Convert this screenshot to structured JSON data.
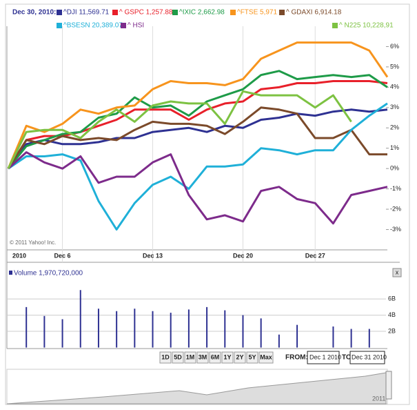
{
  "ui": {
    "header_date": "Dec 30, 2010:",
    "copyright": "© 2011 Yahoo! Inc.",
    "ranges": [
      "1D",
      "5D",
      "1M",
      "3M",
      "6M",
      "1Y",
      "2Y",
      "5Y",
      "Max"
    ],
    "from_label": "FROM:",
    "from_value": "Dec 1 2010",
    "to_label": "TO:",
    "to_value": "Dec 31 2010",
    "navigator_year": "2011"
  },
  "chart_data": [
    {
      "type": "line",
      "ylim": [
        -4,
        7
      ],
      "yticks": [
        {
          "value": 6,
          "label": "6%"
        },
        {
          "value": 5,
          "label": "5%"
        },
        {
          "value": 4,
          "label": "4%"
        },
        {
          "value": 3,
          "label": "3%"
        },
        {
          "value": 2,
          "label": "2%"
        },
        {
          "value": 1,
          "label": "1%"
        },
        {
          "value": 0,
          "label": "0%"
        },
        {
          "value": -1,
          "label": "-1%"
        },
        {
          "value": -2,
          "label": "-2%"
        },
        {
          "value": -3,
          "label": "-3%"
        }
      ],
      "categories": [
        "2010",
        null,
        null,
        "Dec 6",
        null,
        null,
        null,
        null,
        "Dec 13",
        null,
        null,
        null,
        null,
        "Dec 20",
        null,
        null,
        null,
        "Dec 27",
        null,
        null,
        null,
        null
      ],
      "series": [
        {
          "name": "^DJI 11,569.71",
          "color": "#2e3192",
          "values": [
            0,
            1.2,
            1.4,
            1.2,
            1.2,
            1.3,
            1.5,
            1.5,
            1.8,
            1.9,
            2.0,
            1.8,
            2.1,
            2.0,
            2.4,
            2.5,
            2.7,
            2.6,
            2.8,
            2.9,
            2.8,
            2.9
          ]
        },
        {
          "name": "^ GSPC 1,257.88",
          "color": "#e8202a",
          "values": [
            0,
            1.4,
            1.6,
            1.6,
            1.8,
            2.1,
            2.4,
            2.9,
            2.9,
            2.9,
            2.4,
            2.9,
            3.2,
            3.3,
            3.9,
            4.0,
            4.2,
            4.2,
            4.3,
            4.3,
            4.3,
            4.2
          ]
        },
        {
          "name": "^IXIC 2,662.98",
          "color": "#1e9b48",
          "values": [
            0,
            1.1,
            1.4,
            1.7,
            1.8,
            2.5,
            2.7,
            3.5,
            3.0,
            3.1,
            2.6,
            3.3,
            3.6,
            3.9,
            4.6,
            4.8,
            4.4,
            4.5,
            4.6,
            4.5,
            4.6,
            4.0
          ]
        },
        {
          "name": "^FTSE 5,971",
          "color": "#f7941d",
          "values": [
            0,
            2.1,
            1.8,
            2.2,
            2.9,
            2.7,
            3.0,
            3.1,
            3.9,
            4.3,
            4.2,
            4.2,
            4.1,
            4.4,
            5.4,
            5.8,
            6.2,
            6.2,
            6.2,
            6.2,
            5.8,
            4.5
          ]
        },
        {
          "name": "^ GDAXI 6,914.18",
          "color": "#7b4a2a",
          "values": [
            0,
            1.4,
            1.2,
            1.6,
            1.4,
            1.5,
            1.4,
            1.9,
            2.3,
            2.2,
            2.2,
            2.1,
            1.7,
            2.3,
            3.0,
            2.9,
            2.7,
            1.5,
            1.5,
            1.9,
            0.7,
            0.7
          ]
        },
        {
          "name": "^BSESN 20,389.07",
          "color": "#1fb0d8",
          "values": [
            0,
            0.6,
            0.6,
            0.7,
            0.4,
            -1.6,
            -3.0,
            -1.7,
            -0.8,
            -0.4,
            -1.0,
            0.1,
            0.1,
            0.2,
            1.0,
            0.9,
            0.7,
            0.9,
            0.9,
            1.9,
            2.6,
            3.2
          ]
        },
        {
          "name": "^ HSI",
          "color": "#7d2b8b",
          "values": [
            0,
            0.8,
            0.3,
            0,
            0.6,
            -0.7,
            -0.4,
            -0.4,
            0.3,
            0.7,
            -1.3,
            -2.5,
            -2.3,
            -2.6,
            -1.1,
            -0.9,
            -1.5,
            -1.7,
            -2.7,
            -1.3,
            -1.1,
            -0.9
          ]
        },
        {
          "name": "^ N225 10,228,91",
          "color": "#7dc242",
          "values": [
            0,
            1.8,
            1.9,
            1.9,
            1.5,
            2.3,
            2.9,
            2.3,
            3.1,
            3.3,
            3.2,
            3.2,
            2.2,
            3.8,
            3.6,
            3.6,
            3.6,
            3.0,
            3.6,
            2.3,
            null,
            null
          ]
        }
      ]
    },
    {
      "type": "bar",
      "title": "Volume 1,970,720,000",
      "color": "#2e3192",
      "ylim": [
        0,
        8.4
      ],
      "yticks": [
        {
          "value": 6,
          "label": "6B"
        },
        {
          "value": 4,
          "label": "4B"
        },
        {
          "value": 2,
          "label": "2B"
        }
      ],
      "categories": [
        null,
        null,
        null,
        null,
        null,
        null,
        null,
        null,
        null,
        null,
        null,
        null,
        null,
        null,
        null,
        null,
        null,
        null,
        null,
        null,
        null,
        null
      ],
      "values": [
        null,
        5.0,
        3.9,
        3.5,
        7.1,
        4.8,
        4.5,
        4.8,
        4.5,
        4.3,
        4.7,
        5.0,
        4.6,
        4.0,
        3.6,
        1.6,
        2.8,
        null,
        2.6,
        2.3,
        2.3,
        null
      ]
    }
  ]
}
